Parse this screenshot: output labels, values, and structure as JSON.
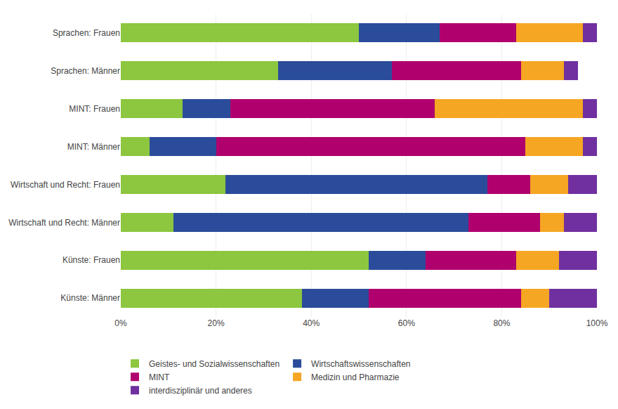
{
  "chart_data": {
    "type": "bar",
    "orientation": "horizontal",
    "stacked": true,
    "categories": [
      "Sprachen: Frauen",
      "Sprachen: Männer",
      "MINT: Frauen",
      "MINT: Männer",
      "Wirtschaft und Recht: Frauen",
      "Wirtschaft und Recht: Männer",
      "Künste: Frauen",
      "Künste: Männer"
    ],
    "series": [
      {
        "name": "Geistes- und Sozialwissenschaften",
        "color": "#8DC63F",
        "values": [
          50,
          33,
          13,
          6,
          22,
          11,
          52,
          38
        ]
      },
      {
        "name": "Wirtschaftswissenschaften",
        "color": "#2B4C9B",
        "values": [
          17,
          24,
          10,
          14,
          55,
          62,
          12,
          14
        ]
      },
      {
        "name": "MINT",
        "color": "#B0006E",
        "values": [
          16,
          27,
          43,
          65,
          9,
          15,
          19,
          32
        ]
      },
      {
        "name": "Medizin und Pharmazie",
        "color": "#F5A623",
        "values": [
          14,
          9,
          31,
          12,
          8,
          5,
          9,
          6
        ]
      },
      {
        "name": "interdisziplinär und anderes",
        "color": "#7030A0",
        "values": [
          3,
          3,
          3,
          3,
          6,
          7,
          8,
          10
        ]
      }
    ],
    "xlim": [
      0,
      100
    ],
    "xticks": [
      {
        "value": 0,
        "label": "0%"
      },
      {
        "value": 20,
        "label": "20%"
      },
      {
        "value": 40,
        "label": "40%"
      },
      {
        "value": 60,
        "label": "60%"
      },
      {
        "value": 80,
        "label": "80%"
      },
      {
        "value": 100,
        "label": "100%"
      }
    ],
    "grid": true,
    "legend": "bottom"
  }
}
